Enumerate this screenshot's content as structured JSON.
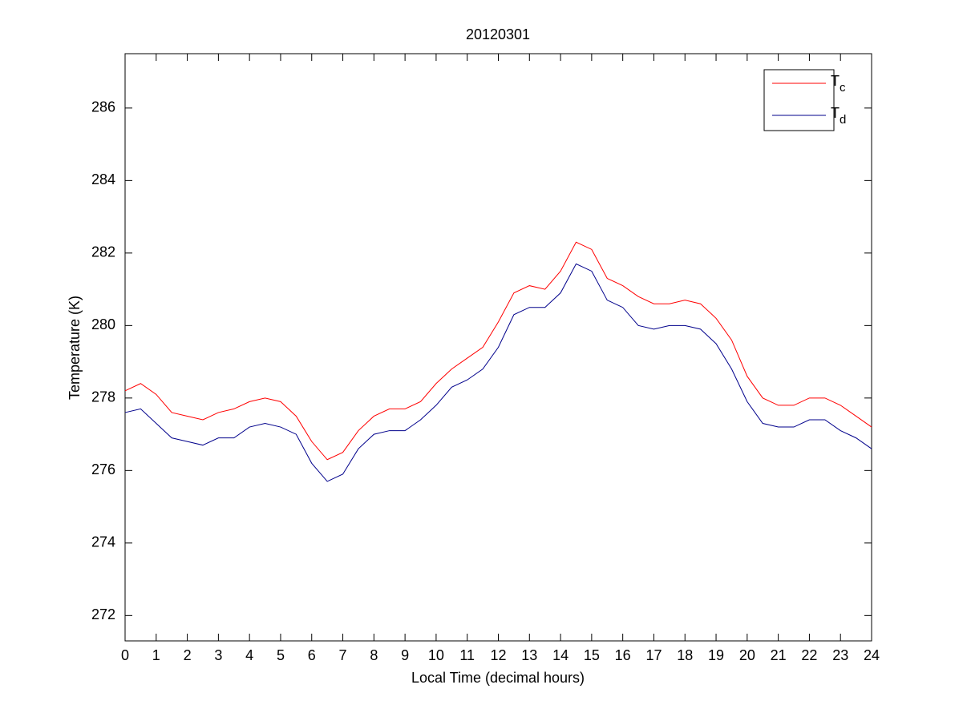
{
  "chart_data": {
    "type": "line",
    "title": "20120301",
    "x_label": "Local Time (decimal hours)",
    "y_label": "Temperature (K)",
    "x": [
      0,
      0.5,
      1,
      1.5,
      2,
      2.5,
      3,
      3.5,
      4,
      4.5,
      5,
      5.5,
      6,
      6.5,
      7,
      7.5,
      8,
      8.5,
      9,
      9.5,
      10,
      10.5,
      11,
      11.5,
      12,
      12.5,
      13,
      13.5,
      14,
      14.5,
      15,
      15.5,
      16,
      16.5,
      17,
      17.5,
      18,
      18.5,
      19,
      19.5,
      20,
      20.5,
      21,
      21.5,
      22,
      22.5,
      23,
      23.5,
      24
    ],
    "series": [
      {
        "name": "Tc",
        "color": "#ff0000",
        "values": [
          278.2,
          278.4,
          278.1,
          277.6,
          277.5,
          277.4,
          277.6,
          277.7,
          277.9,
          278.0,
          277.9,
          277.5,
          276.8,
          276.3,
          276.5,
          277.1,
          277.5,
          277.7,
          277.7,
          277.9,
          278.4,
          278.8,
          279.1,
          279.4,
          280.1,
          280.9,
          281.1,
          281.0,
          281.5,
          282.3,
          282.1,
          281.3,
          281.1,
          280.8,
          280.6,
          280.6,
          280.7,
          280.6,
          280.2,
          279.6,
          278.6,
          278.0,
          277.8,
          277.8,
          278.0,
          278.0,
          277.8,
          277.5,
          277.2
        ]
      },
      {
        "name": "Td",
        "color": "#00008b",
        "values": [
          277.6,
          277.7,
          277.3,
          276.9,
          276.8,
          276.7,
          276.9,
          276.9,
          277.2,
          277.3,
          277.2,
          277.0,
          276.2,
          275.7,
          275.9,
          276.6,
          277.0,
          277.1,
          277.1,
          277.4,
          277.8,
          278.3,
          278.5,
          278.8,
          279.4,
          280.3,
          280.5,
          280.5,
          280.9,
          281.7,
          281.5,
          280.7,
          280.5,
          280.0,
          279.9,
          280.0,
          280.0,
          279.9,
          279.5,
          278.8,
          277.9,
          277.3,
          277.2,
          277.2,
          277.4,
          277.4,
          277.1,
          276.9,
          276.6
        ]
      }
    ],
    "xlim": [
      0,
      24
    ],
    "xticks": [
      0,
      1,
      2,
      3,
      4,
      5,
      6,
      7,
      8,
      9,
      10,
      11,
      12,
      13,
      14,
      15,
      16,
      17,
      18,
      19,
      20,
      21,
      22,
      23,
      24
    ],
    "ylim": [
      271.3,
      287.5
    ],
    "yticks": [
      272,
      274,
      276,
      278,
      280,
      282,
      284,
      286
    ],
    "legend": "upper right",
    "grid": false
  }
}
